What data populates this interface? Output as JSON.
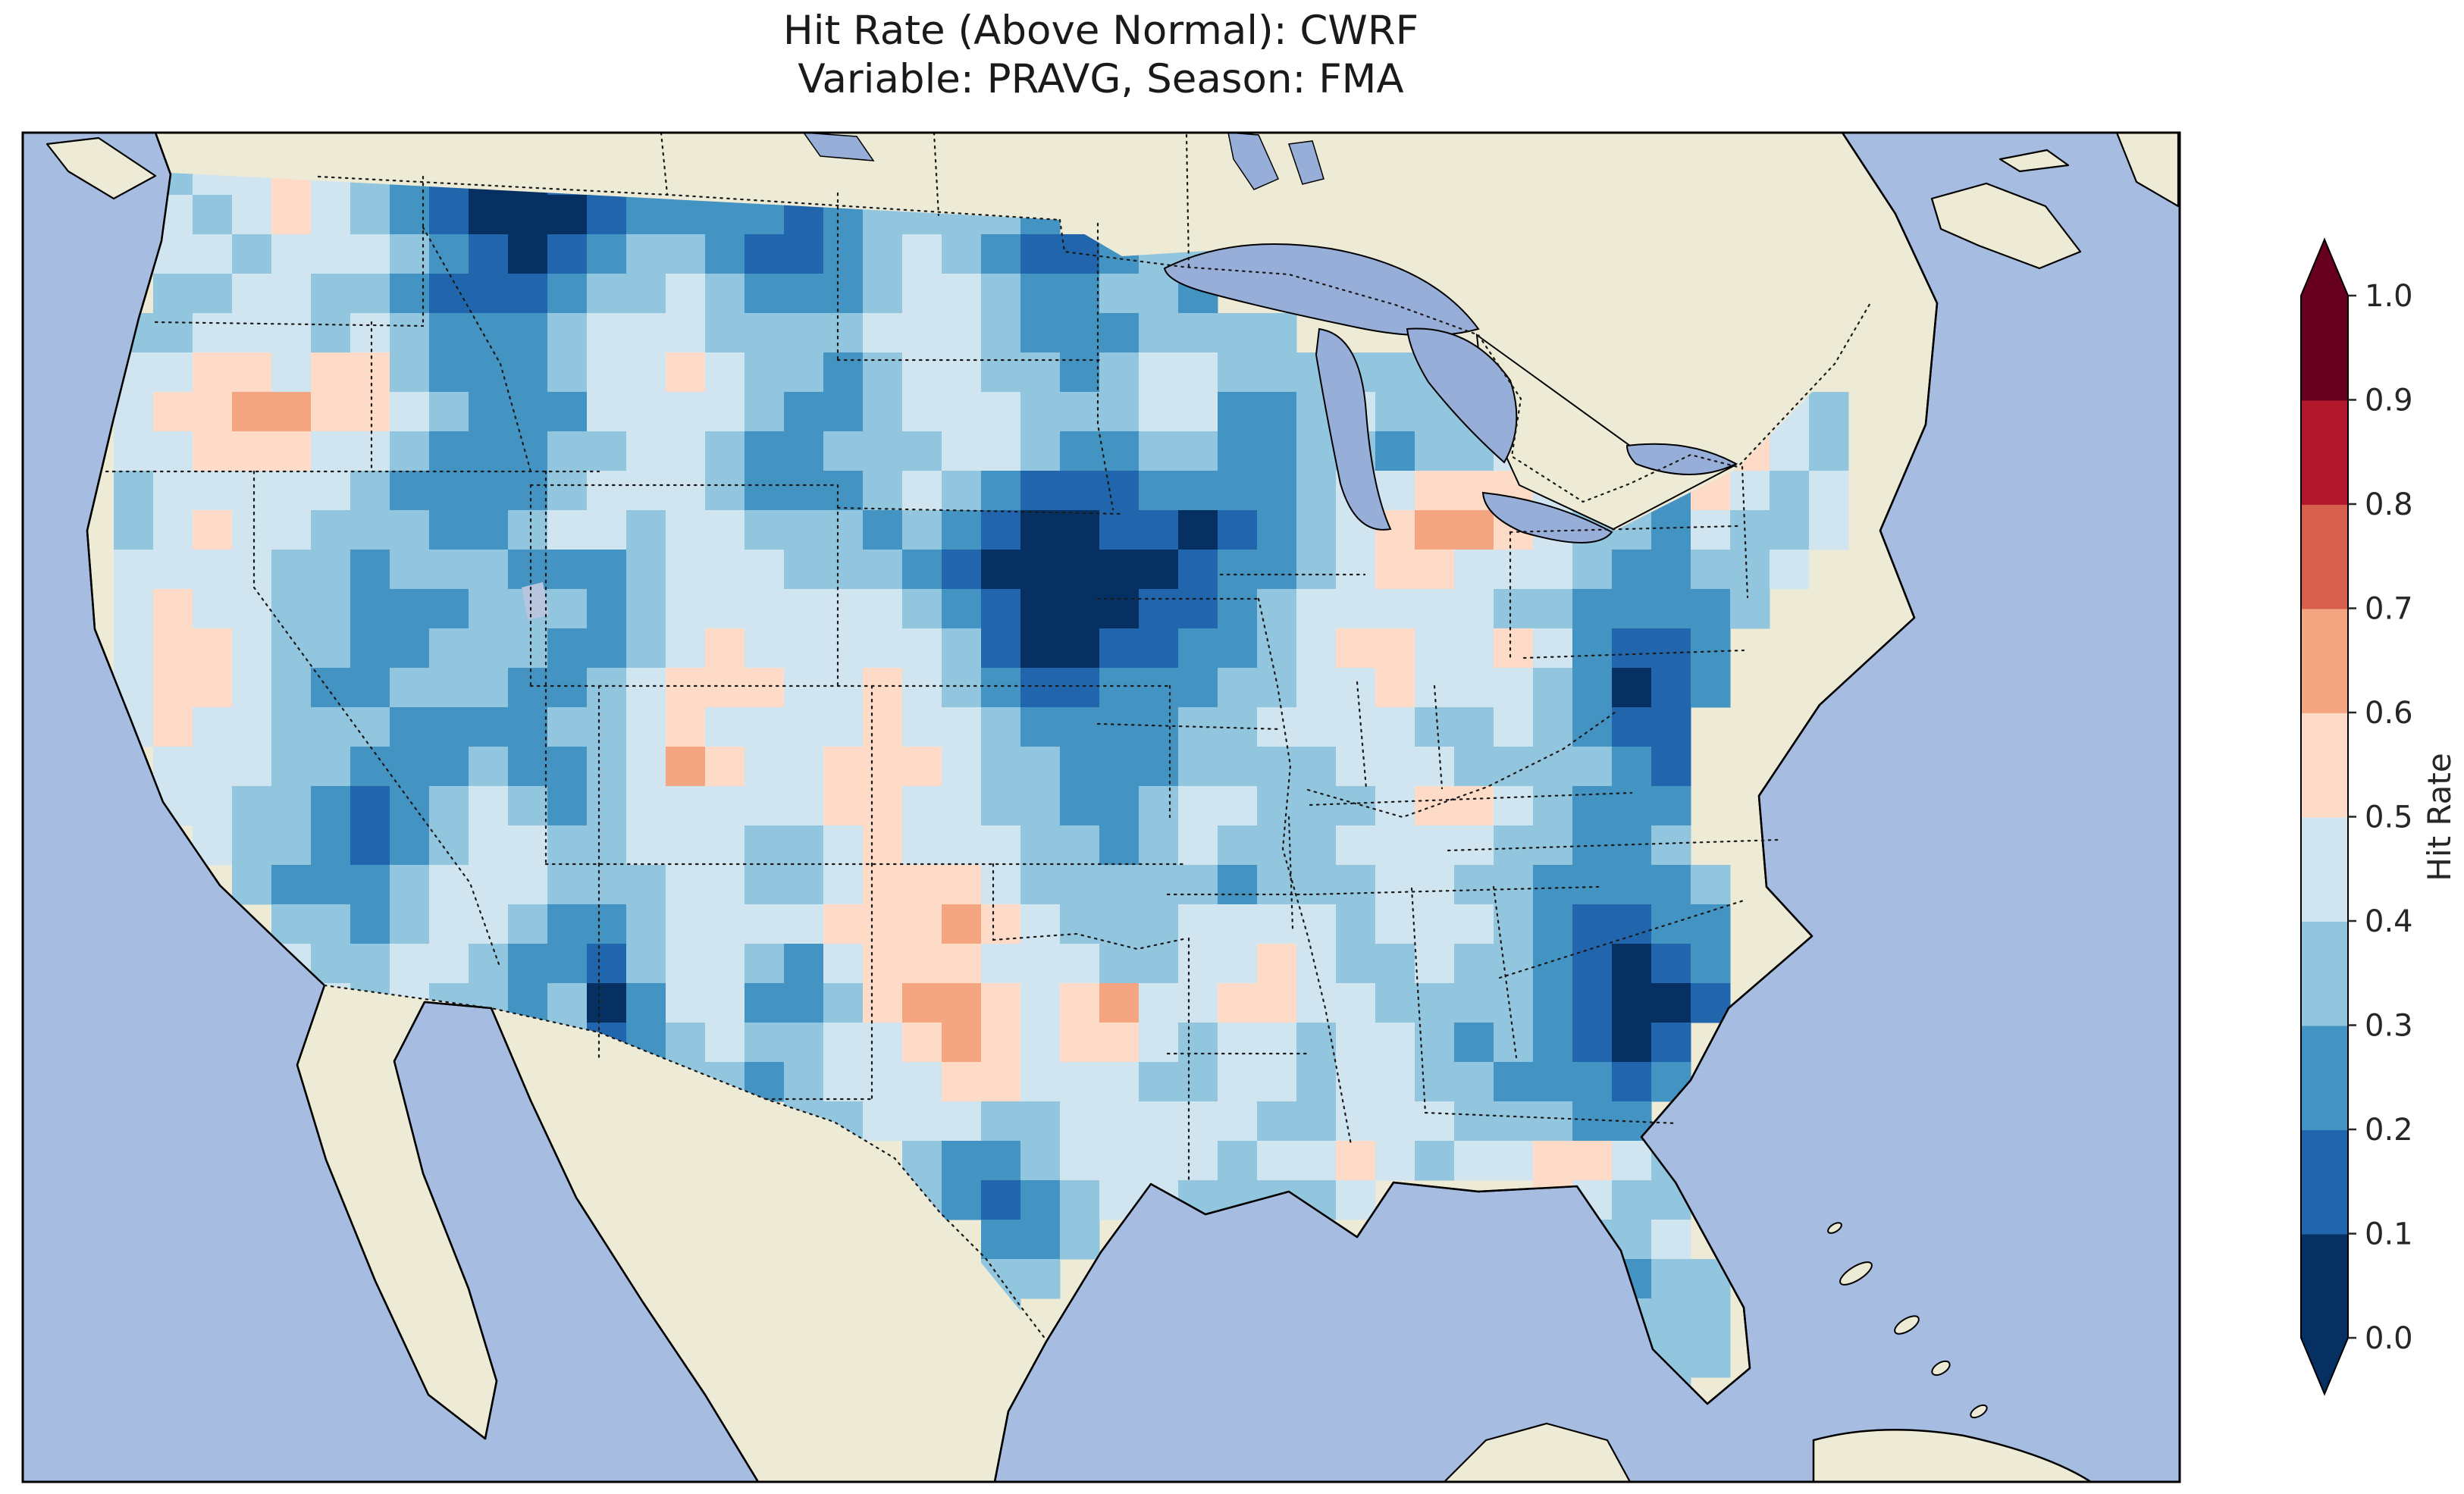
{
  "figure": {
    "title_line1": "Hit Rate (Above Normal): CWRF",
    "title_line2": "Variable: PRAVG, Season: FMA"
  },
  "colorbar": {
    "label": "Hit Rate",
    "tick_labels": [
      "0.0",
      "0.1",
      "0.2",
      "0.3",
      "0.4",
      "0.5",
      "0.6",
      "0.7",
      "0.8",
      "0.9",
      "1.0"
    ],
    "bin_colors": [
      "#053061",
      "#2166ac",
      "#4393c3",
      "#92c5de",
      "#d1e5f0",
      "#fddbc7",
      "#f4a582",
      "#d6604d",
      "#b2182b",
      "#67001f"
    ],
    "under_color": "#053061",
    "over_color": "#67001f",
    "tick_color": "#262626"
  },
  "map_colors": {
    "ocean": "#a6bce0",
    "land": "#edead5",
    "lake": "#97aed9",
    "coast": "#000000",
    "border": "#1a1a1a"
  },
  "chart_data": {
    "type": "heatmap",
    "metric": "Hit Rate (Above Normal)",
    "model": "CWRF",
    "variable": "PRAVG",
    "season": "FMA",
    "region": "Contiguous United States",
    "colormap": "RdBu_r (discrete)",
    "value_range": [
      0.0,
      1.0
    ],
    "bin_width": 0.1,
    "bin_centers": [
      0.05,
      0.15,
      0.25,
      0.35,
      0.45,
      0.55,
      0.65,
      0.75,
      0.85,
      0.95
    ],
    "legend_position": "right",
    "grid": {
      "cols": 45,
      "rows": 32,
      "encoding": "each char is a color-bin index 0-9 (value = index*0.1 .. index*0.1+0.1); '.' = outside CONUS mask",
      "rows_data": [
        ".34454321001233..............................",
        ".43454321000122221233332.....................",
        ".443444321012332112343211233..................",
        ".334433211123343222344322332..................",
        "334443432223444333344432223333...............",
        "4455455322234454332344332344333333...........",
        "45566554322244443223444333442234333333234443.",
        "44555443222334432233344322332233233432236543.",
        "34444432222344432223432111222234455543225434.",
        "34544333223443443332321001101234566543324334.",
        "4444332333222344433321000001223455444322334..",
        "454433222333234444443210001123444443322223...",
        "45543322333223454444431001122345544542112....",
        "45543223332234555445432112223344544432012....",
        "4544333222233454444544322223344443343211.....",
        ".444332223223465445554332223333444333321.....",
        ".443321234323444445544332234433345543222.....",
        "..43321234433444334544433234333444433223.....",
        "...32223444333443345554333332333443322223....",
        "....3323443223444455565433344443444321122....",
        "....4334432213443245554443344543343321012....",
        ".....434332302442235665456445544333321001....",
        "......4433331234334456545543443443232101.....",
        "...........32233234445544433443443322212.....",
        ".................3344433444443344433322......",
        "....................32234444344543445543.....",
        "....................321234433334....5433.....",
        "......................223...........4334.....",
        "......................33.............3233....",
        "......................3..............2333....",
        "......................................333....",
        ".......................................3....."
      ]
    }
  }
}
